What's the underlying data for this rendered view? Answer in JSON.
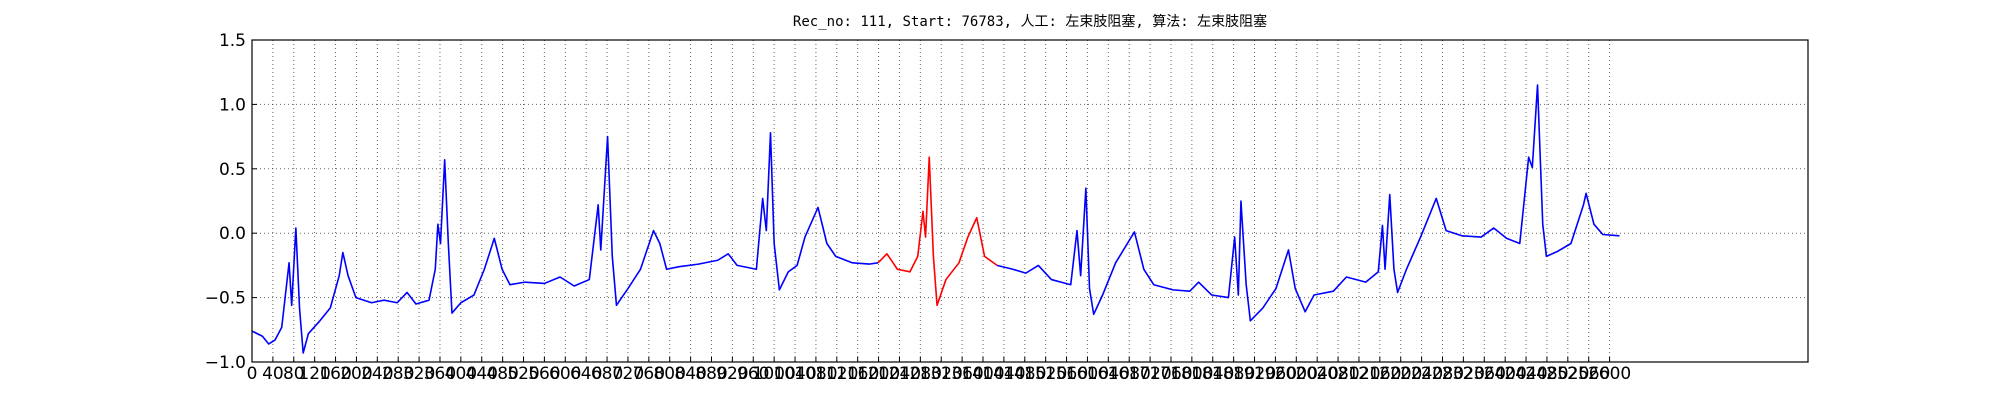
{
  "chart_data": {
    "type": "line",
    "title": "Rec_no: 111, Start: 76783, 人工: 左束肢阻塞, 算法: 左束肢阻塞",
    "xlim": [
      0,
      2980
    ],
    "ylim": [
      -1,
      1.5
    ],
    "xticks": [
      0,
      40,
      80,
      120,
      160,
      200,
      240,
      280,
      320,
      360,
      400,
      440,
      480,
      520,
      560,
      600,
      640,
      680,
      720,
      760,
      800,
      840,
      880,
      920,
      960,
      1000,
      1040,
      1080,
      1120,
      1160,
      1200,
      1240,
      1280,
      1320,
      1360,
      1400,
      1440,
      1480,
      1520,
      1560,
      1600,
      1640,
      1680,
      1720,
      1760,
      1800,
      1840,
      1880,
      1920,
      1960,
      2000,
      2040,
      2080,
      2120,
      2160,
      2200,
      2240,
      2280,
      2320,
      2360,
      2400,
      2440,
      2480,
      2520,
      2560,
      2600
    ],
    "yticks": [
      {
        "value": -1,
        "label": "−1.0"
      },
      {
        "value": -0.5,
        "label": "−0.5"
      },
      {
        "value": 0,
        "label": "0.0"
      },
      {
        "value": 0.5,
        "label": "0.5"
      },
      {
        "value": 1,
        "label": "1.0"
      },
      {
        "value": 1.5,
        "label": "1.5"
      }
    ],
    "grid": true,
    "series": [
      {
        "color": "#0000ff",
        "x": [
          0,
          20,
          32,
          44,
          57,
          71,
          76,
          84,
          91,
          98,
          108,
          130,
          150,
          167,
          174,
          184,
          199,
          229,
          253,
          278,
          297,
          314,
          339,
          351,
          356,
          361,
          369,
          376,
          383,
          400,
          425,
          445,
          464,
          479,
          494,
          523,
          560,
          590,
          617,
          646,
          663,
          668,
          681,
          690,
          698,
          720,
          744,
          769,
          781,
          794,
          818,
          855,
          892,
          912,
          929,
          966,
          978,
          985,
          993,
          1000,
          1010,
          1027,
          1044,
          1059,
          1084,
          1101,
          1118,
          1150,
          1182,
          1199,
          null,
          1427,
          1457,
          1482,
          1506,
          1531,
          1568,
          1580,
          1587,
          1597,
          1604,
          1612,
          1629,
          1654,
          1690,
          1708,
          1727,
          1764,
          1796,
          1813,
          1838,
          1870,
          1882,
          1889,
          1894,
          1904,
          1912,
          1936,
          1961,
          1985,
          1998,
          2017,
          2034,
          2071,
          2096,
          2133,
          2157,
          2165,
          2170,
          2179,
          2187,
          2194,
          2211,
          2238,
          2268,
          2287,
          2317,
          2354,
          2378,
          2403,
          2428,
          2445,
          2452,
          2462,
          2472,
          2479,
          2501,
          2526,
          2550,
          2555,
          2570,
          2587,
          2619
        ],
        "values": [
          -0.76,
          -0.8,
          -0.86,
          -0.83,
          -0.73,
          -0.23,
          -0.56,
          0.04,
          -0.58,
          -0.93,
          -0.78,
          -0.68,
          -0.58,
          -0.33,
          -0.15,
          -0.33,
          -0.5,
          -0.54,
          -0.52,
          -0.54,
          -0.46,
          -0.55,
          -0.52,
          -0.28,
          0.07,
          -0.08,
          0.57,
          -0.08,
          -0.62,
          -0.54,
          -0.48,
          -0.28,
          -0.04,
          -0.28,
          -0.4,
          -0.38,
          -0.39,
          -0.34,
          -0.41,
          -0.36,
          0.22,
          -0.13,
          0.75,
          -0.18,
          -0.56,
          -0.43,
          -0.28,
          0.02,
          -0.08,
          -0.28,
          -0.26,
          -0.24,
          -0.21,
          -0.16,
          -0.25,
          -0.28,
          0.27,
          0.02,
          0.78,
          -0.08,
          -0.44,
          -0.3,
          -0.25,
          -0.03,
          0.2,
          -0.08,
          -0.18,
          -0.23,
          -0.24,
          -0.23,
          null,
          -0.25,
          -0.28,
          -0.31,
          -0.25,
          -0.36,
          -0.4,
          0.02,
          -0.33,
          0.35,
          -0.43,
          -0.63,
          -0.48,
          -0.23,
          0.01,
          -0.28,
          -0.4,
          -0.44,
          -0.45,
          -0.38,
          -0.48,
          -0.5,
          -0.03,
          -0.48,
          0.25,
          -0.4,
          -0.68,
          -0.58,
          -0.43,
          -0.13,
          -0.43,
          -0.61,
          -0.48,
          -0.45,
          -0.34,
          -0.38,
          -0.3,
          0.06,
          -0.28,
          0.3,
          -0.28,
          -0.46,
          -0.28,
          -0.03,
          0.27,
          0.02,
          -0.02,
          -0.03,
          0.04,
          -0.04,
          -0.08,
          0.59,
          0.51,
          1.15,
          0.07,
          -0.18,
          -0.14,
          -0.08,
          0.22,
          0.31,
          0.07,
          -0.01,
          -0.02
        ]
      },
      {
        "color": "#ff0000",
        "x": [
          1199,
          1216,
          1236,
          1260,
          1275,
          1285,
          1290,
          1297,
          1305,
          1312,
          1329,
          1354,
          1371,
          1388,
          1403,
          1427
        ],
        "values": [
          -0.23,
          -0.16,
          -0.28,
          -0.3,
          -0.18,
          0.17,
          -0.03,
          0.59,
          -0.18,
          -0.56,
          -0.36,
          -0.23,
          -0.03,
          0.12,
          -0.18,
          -0.25
        ]
      }
    ]
  }
}
